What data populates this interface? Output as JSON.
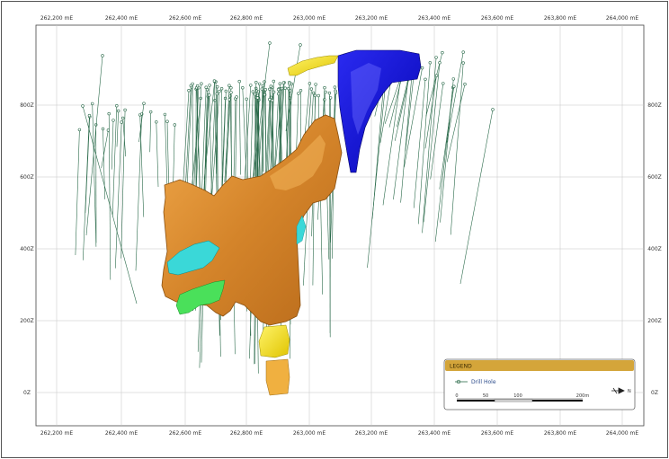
{
  "x_axis": {
    "ticks": [
      "262,200 mE",
      "262,400 mE",
      "262,600 mE",
      "262,800 mE",
      "263,000 mE",
      "263,200 mE",
      "263,400 mE",
      "263,600 mE",
      "263,800 mE",
      "264,000 mE"
    ]
  },
  "y_axis": {
    "ticks": [
      "800Z",
      "600Z",
      "400Z",
      "200Z",
      "0Z"
    ]
  },
  "legend": {
    "title": "LEGEND",
    "drillhole_label": "Drill Hole",
    "scale_labels": [
      "0",
      "50",
      "100",
      "200m"
    ],
    "north_arrow_label": "N",
    "title_bar_color": "#d4a53a"
  },
  "colors": {
    "orebody_main": "#d98a2a",
    "orebody_blue": "#1a1ad8",
    "orebody_yellow": "#f2e01a",
    "orebody_cyan": "#3ad8d8",
    "orebody_green": "#4ae05a",
    "drillhole": "#2a6a4a",
    "grid": "#b8b8b8"
  },
  "icons": [
    "drill-hole-symbol-icon",
    "north-arrow-icon"
  ]
}
